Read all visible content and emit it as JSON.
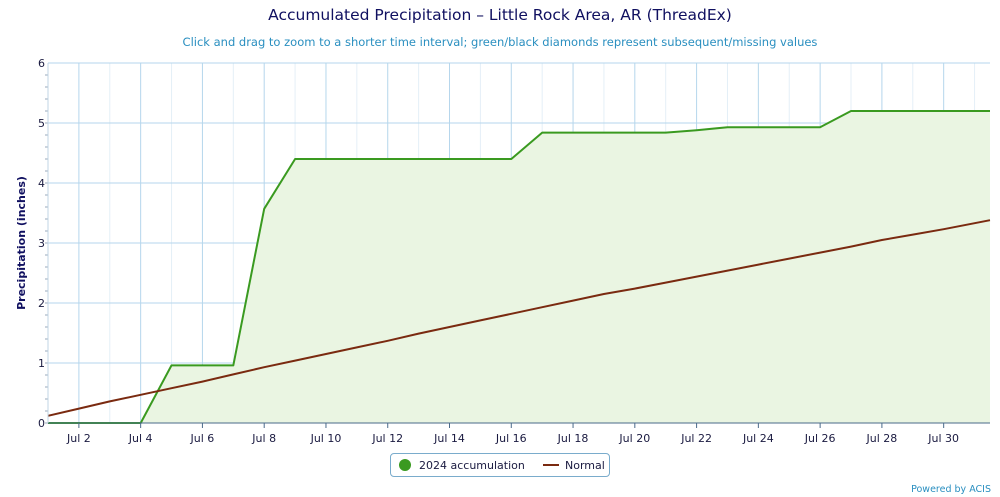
{
  "chart_data": {
    "type": "area",
    "title": "Accumulated Precipitation – Little Rock Area, AR (ThreadEx)",
    "subtitle": "Click and drag to zoom to a shorter time interval; green/black diamonds represent subsequent/missing values",
    "xlabel": "",
    "ylabel": "Precipitation (inches)",
    "ylim": [
      0,
      6
    ],
    "yticks": [
      "0",
      "1",
      "2",
      "3",
      "4",
      "5",
      "6"
    ],
    "xlim": [
      1,
      31.5
    ],
    "x_ticks": [
      {
        "day": 2,
        "label": "Jul 2"
      },
      {
        "day": 4,
        "label": "Jul 4"
      },
      {
        "day": 6,
        "label": "Jul 6"
      },
      {
        "day": 8,
        "label": "Jul 8"
      },
      {
        "day": 10,
        "label": "Jul 10"
      },
      {
        "day": 12,
        "label": "Jul 12"
      },
      {
        "day": 14,
        "label": "Jul 14"
      },
      {
        "day": 16,
        "label": "Jul 16"
      },
      {
        "day": 18,
        "label": "Jul 18"
      },
      {
        "day": 20,
        "label": "Jul 20"
      },
      {
        "day": 22,
        "label": "Jul 22"
      },
      {
        "day": 24,
        "label": "Jul 24"
      },
      {
        "day": 26,
        "label": "Jul 26"
      },
      {
        "day": 28,
        "label": "Jul 28"
      },
      {
        "day": 30,
        "label": "Jul 30"
      }
    ],
    "grid": true,
    "legend_position": "bottom-center",
    "series": [
      {
        "name": "2024 accumulation",
        "color": "#3a9a20",
        "fill": "#eaf5e2",
        "points": [
          [
            1,
            0
          ],
          [
            2,
            0
          ],
          [
            3,
            0
          ],
          [
            4,
            0
          ],
          [
            5,
            0.96
          ],
          [
            6,
            0.96
          ],
          [
            7,
            0.96
          ],
          [
            8,
            3.57
          ],
          [
            9,
            4.4
          ],
          [
            10,
            4.4
          ],
          [
            11,
            4.4
          ],
          [
            12,
            4.4
          ],
          [
            13,
            4.4
          ],
          [
            14,
            4.4
          ],
          [
            15,
            4.4
          ],
          [
            16,
            4.4
          ],
          [
            17,
            4.84
          ],
          [
            18,
            4.84
          ],
          [
            19,
            4.84
          ],
          [
            20,
            4.84
          ],
          [
            21,
            4.84
          ],
          [
            22,
            4.88
          ],
          [
            23,
            4.93
          ],
          [
            24,
            4.93
          ],
          [
            25,
            4.93
          ],
          [
            26,
            4.93
          ],
          [
            27,
            5.2
          ],
          [
            28,
            5.2
          ],
          [
            29,
            5.2
          ],
          [
            30,
            5.2
          ],
          [
            31,
            5.2
          ],
          [
            31.5,
            5.2
          ]
        ]
      },
      {
        "name": "Normal",
        "color": "#7a2a10",
        "points": [
          [
            1,
            0.12
          ],
          [
            2,
            0.24
          ],
          [
            3,
            0.36
          ],
          [
            4,
            0.47
          ],
          [
            5,
            0.58
          ],
          [
            6,
            0.69
          ],
          [
            7,
            0.81
          ],
          [
            8,
            0.93
          ],
          [
            9,
            1.04
          ],
          [
            10,
            1.15
          ],
          [
            11,
            1.26
          ],
          [
            12,
            1.37
          ],
          [
            13,
            1.49
          ],
          [
            14,
            1.6
          ],
          [
            15,
            1.71
          ],
          [
            16,
            1.82
          ],
          [
            17,
            1.93
          ],
          [
            18,
            2.04
          ],
          [
            19,
            2.15
          ],
          [
            20,
            2.24
          ],
          [
            21,
            2.34
          ],
          [
            22,
            2.44
          ],
          [
            23,
            2.54
          ],
          [
            24,
            2.64
          ],
          [
            25,
            2.74
          ],
          [
            26,
            2.84
          ],
          [
            27,
            2.94
          ],
          [
            28,
            3.05
          ],
          [
            29,
            3.14
          ],
          [
            30,
            3.23
          ],
          [
            31,
            3.33
          ],
          [
            31.5,
            3.38
          ]
        ]
      }
    ]
  },
  "legend": {
    "item1": "2024 accumulation",
    "item2": "Normal"
  },
  "credit": "Powered by ACIS"
}
